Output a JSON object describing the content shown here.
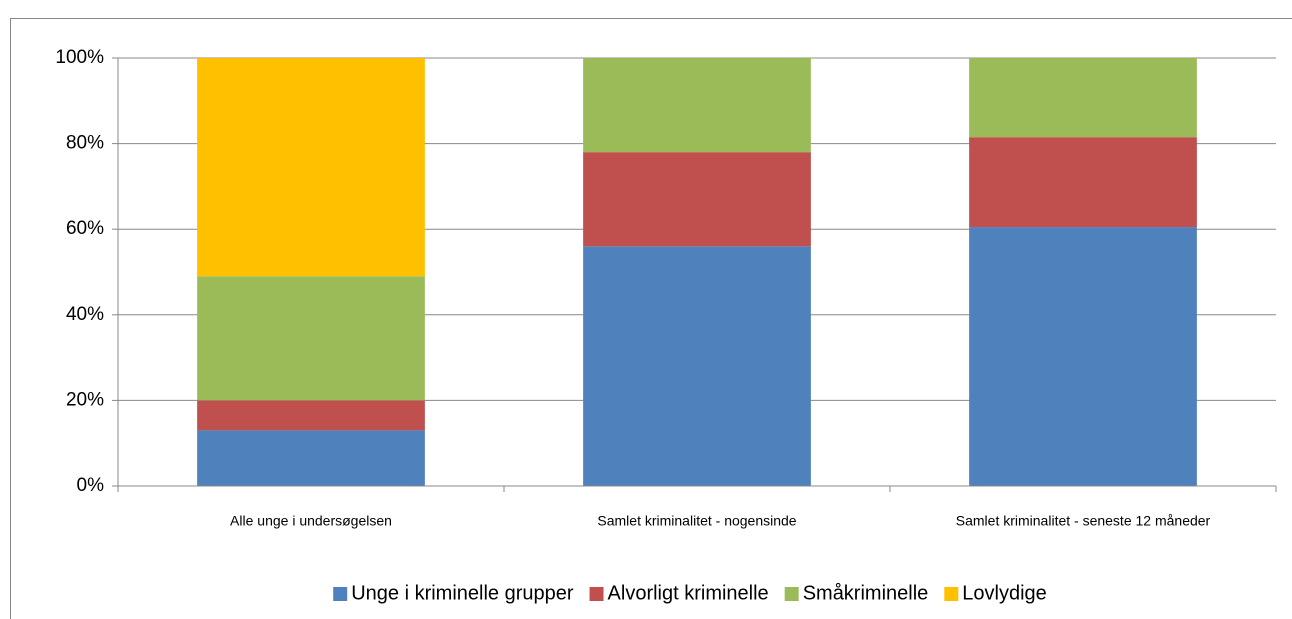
{
  "chart_data": {
    "type": "stacked_bar",
    "categories": [
      "Alle unge i undersøgelsen",
      "Samlet kriminalitet - nogensinde",
      "Samlet kriminalitet - seneste 12 måneder"
    ],
    "series": [
      {
        "name": "Unge i kriminelle grupper",
        "color": "#4f81bd",
        "values": [
          13,
          56,
          60.5
        ]
      },
      {
        "name": "Alvorligt kriminelle",
        "color": "#c0504d",
        "values": [
          7,
          22,
          21
        ]
      },
      {
        "name": "Småkriminelle",
        "color": "#9bbb59",
        "values": [
          29,
          22,
          18.5
        ]
      },
      {
        "name": "Lovlydige",
        "color": "#ffc000",
        "values": [
          51,
          0,
          0
        ]
      }
    ],
    "ylim": [
      0,
      100
    ],
    "yticks": [
      {
        "value": 0,
        "label": "0%"
      },
      {
        "value": 20,
        "label": "20%"
      },
      {
        "value": 40,
        "label": "40%"
      },
      {
        "value": 60,
        "label": "60%"
      },
      {
        "value": 80,
        "label": "80%"
      },
      {
        "value": 100,
        "label": "100%"
      }
    ],
    "grid": true,
    "legend": "bottom"
  }
}
